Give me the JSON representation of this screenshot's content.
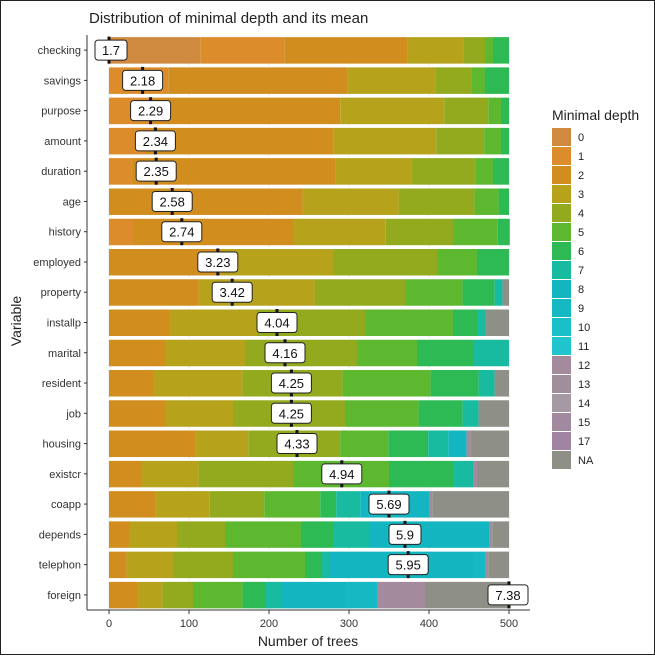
{
  "chart_data": {
    "type": "bar",
    "title": "Distribution of minimal depth and its mean",
    "xlabel": "Number of trees",
    "ylabel": "Variable",
    "xlim": [
      0,
      500
    ],
    "x_ticks": [
      0,
      100,
      200,
      300,
      400,
      500
    ],
    "x_tick_labels": [
      "0",
      "100",
      "200",
      "300",
      "400",
      "500"
    ],
    "grid": true,
    "legend_position": "right",
    "legend_title": "Minimal depth",
    "categories": [
      "checking",
      "savings",
      "purpose",
      "amount",
      "duration",
      "age",
      "history",
      "employed",
      "property",
      "installp",
      "marital",
      "resident",
      "job",
      "housing",
      "existcr",
      "coapp",
      "depends",
      "telephon",
      "foreign"
    ],
    "series": [
      {
        "name": "0",
        "color": "#CF8A3F",
        "values": [
          114,
          0,
          0,
          0,
          0,
          0,
          0,
          0,
          0,
          0,
          0,
          0,
          0,
          0,
          0,
          0,
          0,
          0,
          0
        ]
      },
      {
        "name": "1",
        "color": "#DC8C2A",
        "values": [
          105,
          74,
          55,
          45,
          28,
          0,
          30,
          0,
          0,
          0,
          0,
          0,
          0,
          0,
          0,
          0,
          0,
          0,
          0
        ]
      },
      {
        "name": "2",
        "color": "#D28D1F",
        "values": [
          154,
          224,
          234,
          236,
          255,
          242,
          200,
          140,
          112,
          75,
          70,
          55,
          70,
          108,
          40,
          58,
          25,
          22,
          35
        ]
      },
      {
        "name": "3",
        "color": "#B7A21C",
        "values": [
          70,
          110,
          130,
          128,
          95,
          120,
          116,
          140,
          145,
          110,
          100,
          112,
          85,
          66,
          72,
          68,
          60,
          58,
          32
        ]
      },
      {
        "name": "4",
        "color": "#93AA1E",
        "values": [
          27,
          45,
          55,
          60,
          80,
          95,
          84,
          130,
          113,
          135,
          140,
          125,
          140,
          115,
          118,
          68,
          60,
          75,
          38
        ]
      },
      {
        "name": "5",
        "color": "#5DB830",
        "values": [
          10,
          17,
          16,
          21,
          22,
          30,
          56,
          50,
          72,
          110,
          75,
          110,
          92,
          60,
          120,
          70,
          95,
          90,
          62
        ]
      },
      {
        "name": "6",
        "color": "#2DBA55",
        "values": [
          20,
          30,
          10,
          10,
          20,
          13,
          15,
          40,
          40,
          30,
          70,
          60,
          55,
          50,
          80,
          20,
          40,
          20,
          28
        ]
      },
      {
        "name": "7",
        "color": "#18BBA0",
        "values": [
          0,
          0,
          0,
          0,
          0,
          0,
          0,
          0,
          10,
          10,
          45,
          20,
          20,
          25,
          25,
          30,
          45,
          10,
          20
        ]
      },
      {
        "name": "8",
        "color": "#12B5C0",
        "values": [
          0,
          0,
          0,
          0,
          0,
          0,
          0,
          0,
          0,
          0,
          0,
          0,
          0,
          23,
          0,
          86,
          150,
          180,
          80
        ]
      },
      {
        "name": "9",
        "color": "#15B9C3",
        "values": [
          0,
          0,
          0,
          0,
          0,
          0,
          0,
          0,
          0,
          0,
          0,
          0,
          0,
          0,
          0,
          0,
          0,
          15,
          40
        ]
      },
      {
        "name": "10",
        "color": "#19BFC9",
        "values": [
          0,
          0,
          0,
          0,
          0,
          0,
          0,
          0,
          0,
          0,
          0,
          0,
          0,
          0,
          0,
          0,
          0,
          0,
          0
        ]
      },
      {
        "name": "11",
        "color": "#1FC4CE",
        "values": [
          0,
          0,
          0,
          0,
          0,
          0,
          0,
          0,
          0,
          0,
          0,
          0,
          0,
          0,
          0,
          0,
          0,
          0,
          0
        ]
      },
      {
        "name": "12",
        "color": "#A38A9C",
        "values": [
          0,
          0,
          0,
          0,
          0,
          0,
          0,
          0,
          0,
          0,
          0,
          0,
          0,
          5,
          5,
          4,
          4,
          4,
          60
        ]
      },
      {
        "name": "13",
        "color": "#A08F9B",
        "values": [
          0,
          0,
          0,
          0,
          0,
          0,
          0,
          0,
          0,
          0,
          0,
          0,
          0,
          0,
          0,
          0,
          0,
          0,
          0
        ]
      },
      {
        "name": "14",
        "color": "#A59AA4",
        "values": [
          0,
          0,
          0,
          0,
          0,
          0,
          0,
          0,
          0,
          0,
          0,
          0,
          0,
          0,
          0,
          0,
          0,
          0,
          0
        ]
      },
      {
        "name": "15",
        "color": "#A189A0",
        "values": [
          0,
          0,
          0,
          0,
          0,
          0,
          0,
          0,
          0,
          0,
          0,
          0,
          0,
          0,
          0,
          0,
          0,
          0,
          0
        ]
      },
      {
        "name": "17",
        "color": "#A184A2",
        "values": [
          0,
          0,
          0,
          0,
          0,
          0,
          0,
          0,
          0,
          0,
          0,
          0,
          0,
          0,
          0,
          0,
          0,
          0,
          0
        ]
      },
      {
        "name": "NA",
        "color": "#8E8F86",
        "values": [
          0,
          0,
          0,
          0,
          0,
          0,
          0,
          0,
          8,
          30,
          0,
          18,
          38,
          48,
          40,
          96,
          21,
          26,
          105
        ]
      }
    ],
    "mean_labels": [
      "1.7",
      "2.18",
      "2.29",
      "2.34",
      "2.35",
      "2.58",
      "2.74",
      "3.23",
      "3.42",
      "4.04",
      "4.16",
      "4.25",
      "4.25",
      "4.33",
      "4.94",
      "5.69",
      "5.9",
      "5.95",
      "7.38"
    ],
    "mean_positions": [
      0,
      42,
      52,
      58,
      59,
      79,
      91,
      136,
      154,
      210,
      220,
      228,
      228,
      235,
      291,
      350,
      370,
      374,
      500
    ]
  }
}
